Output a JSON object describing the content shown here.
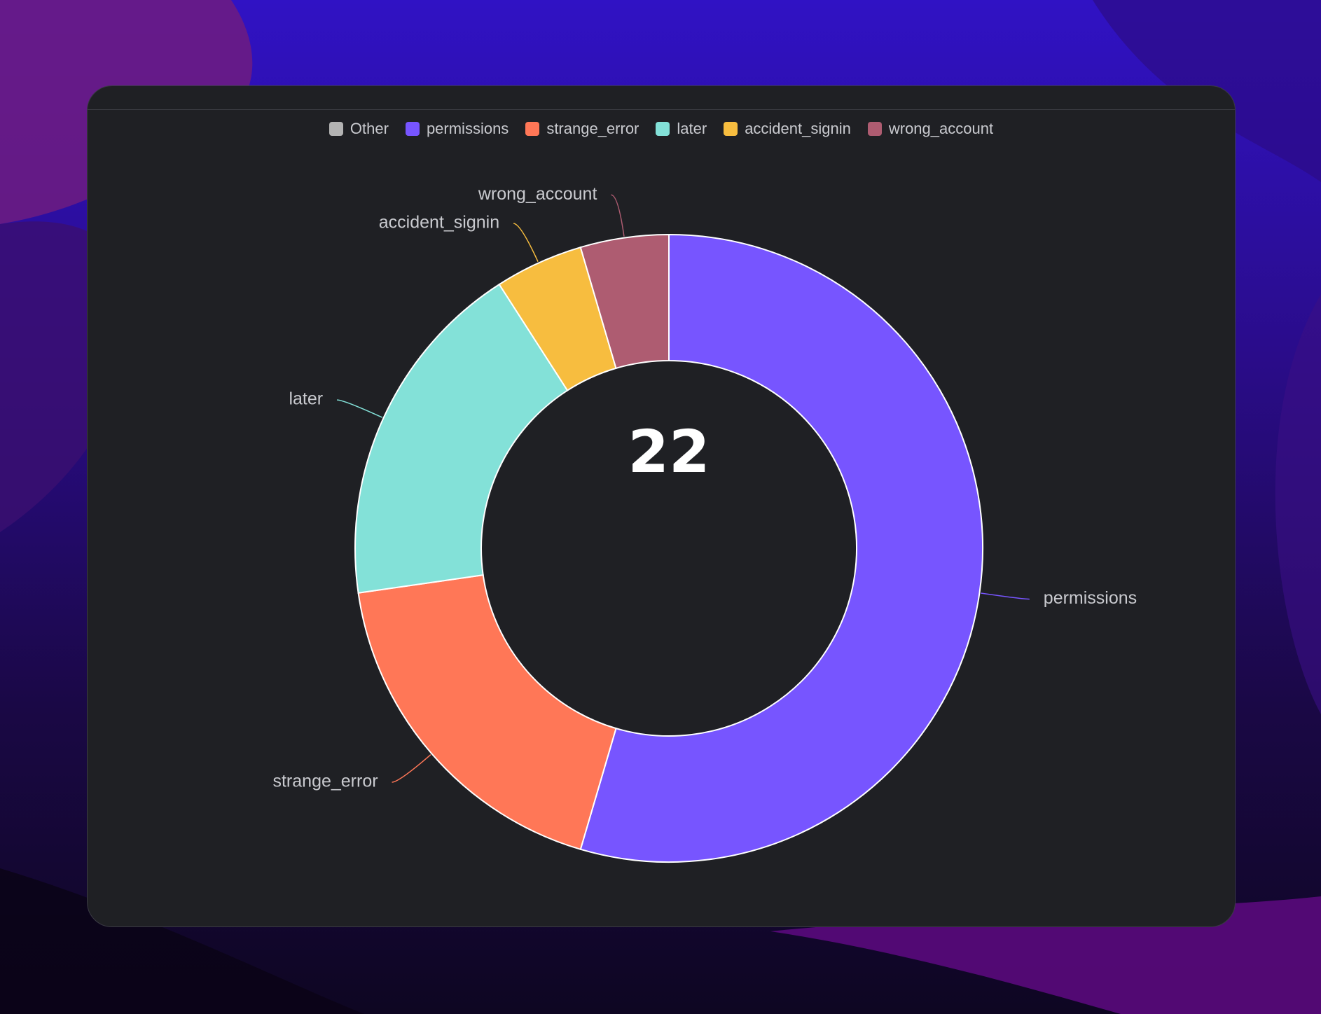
{
  "colors": {
    "card_background": "#1f2024",
    "slice_border": "#ffffff",
    "label_text": "#c9cacf"
  },
  "chart_data": {
    "type": "pie",
    "variant": "donut",
    "total": "22",
    "legend_position": "top",
    "slices": [
      {
        "name": "permissions",
        "value": 12,
        "color": "#7755ff"
      },
      {
        "name": "strange_error",
        "value": 4,
        "color": "#ff7757"
      },
      {
        "name": "later",
        "value": 4,
        "color": "#83e1d8"
      },
      {
        "name": "accident_signin",
        "value": 1,
        "color": "#f7bd3f"
      },
      {
        "name": "wrong_account",
        "value": 1,
        "color": "#ae5c71"
      }
    ],
    "legend": [
      {
        "label": "Other",
        "color": "#b3b3b3"
      },
      {
        "label": "permissions",
        "color": "#7755ff"
      },
      {
        "label": "strange_error",
        "color": "#ff7757"
      },
      {
        "label": "later",
        "color": "#83e1d8"
      },
      {
        "label": "accident_signin",
        "color": "#f7bd3f"
      },
      {
        "label": "wrong_account",
        "color": "#ae5c71"
      }
    ]
  }
}
